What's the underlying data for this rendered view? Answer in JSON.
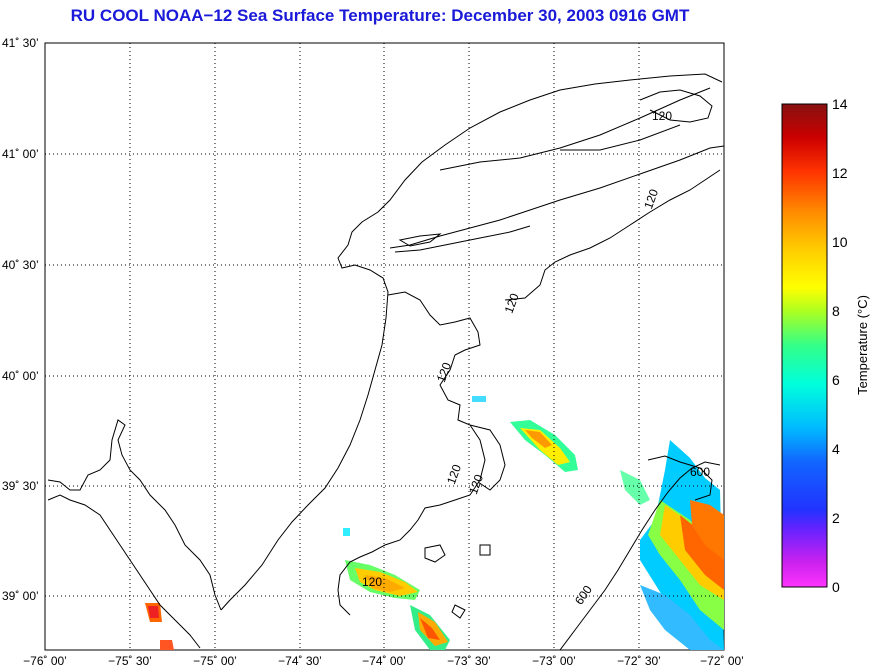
{
  "title": "RU COOL  NOAA−12  Sea Surface Temperature:  December 30, 2003 0916 GMT",
  "map": {
    "lat_labels": [
      "41˚ 30’",
      "41˚ 00’",
      "40˚ 30’",
      "40˚ 00’",
      "39˚ 30’",
      "39˚ 00’"
    ],
    "lon_labels": [
      "−76˚ 00’",
      "−75˚ 30’",
      "−75˚ 00’",
      "−74˚ 30’",
      "−74˚ 00’",
      "−73˚ 30’",
      "−73˚ 00’",
      "−72˚ 30’",
      "−72˚ 00’"
    ],
    "contour_labels": [
      "120",
      "120",
      "120",
      "120",
      "120",
      "120",
      "120",
      "600",
      "600"
    ],
    "colors": {
      "coast": "#000000",
      "grid": "#000000",
      "frame": "#000000"
    }
  },
  "colorbar": {
    "label": "Temperature (°C)",
    "ticks": [
      "0",
      "2",
      "4",
      "6",
      "8",
      "10",
      "12",
      "14"
    ],
    "min": 0,
    "max": 14
  }
}
